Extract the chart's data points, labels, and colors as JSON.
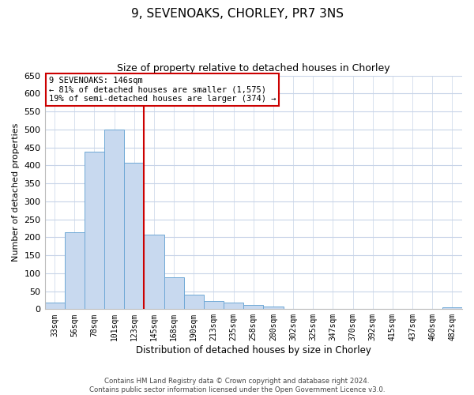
{
  "title": "9, SEVENOAKS, CHORLEY, PR7 3NS",
  "subtitle": "Size of property relative to detached houses in Chorley",
  "xlabel": "Distribution of detached houses by size in Chorley",
  "ylabel": "Number of detached properties",
  "categories": [
    "33sqm",
    "56sqm",
    "78sqm",
    "101sqm",
    "123sqm",
    "145sqm",
    "168sqm",
    "190sqm",
    "213sqm",
    "235sqm",
    "258sqm",
    "280sqm",
    "302sqm",
    "325sqm",
    "347sqm",
    "370sqm",
    "392sqm",
    "415sqm",
    "437sqm",
    "460sqm",
    "482sqm"
  ],
  "values": [
    18,
    213,
    437,
    500,
    408,
    207,
    88,
    40,
    22,
    18,
    12,
    8,
    0,
    0,
    0,
    0,
    0,
    0,
    0,
    0,
    5
  ],
  "bar_color": "#c8d9ef",
  "bar_edge_color": "#6fa8d6",
  "reference_line_color": "#cc0000",
  "reference_line_index": 5,
  "ylim": [
    0,
    650
  ],
  "yticks": [
    0,
    50,
    100,
    150,
    200,
    250,
    300,
    350,
    400,
    450,
    500,
    550,
    600,
    650
  ],
  "annotation_title": "9 SEVENOAKS: 146sqm",
  "annotation_line1": "← 81% of detached houses are smaller (1,575)",
  "annotation_line2": "19% of semi-detached houses are larger (374) →",
  "annotation_box_color": "#ffffff",
  "annotation_box_edge": "#cc0000",
  "footer1": "Contains HM Land Registry data © Crown copyright and database right 2024.",
  "footer2": "Contains public sector information licensed under the Open Government Licence v3.0.",
  "bg_color": "#ffffff",
  "grid_color": "#c8d4e8"
}
